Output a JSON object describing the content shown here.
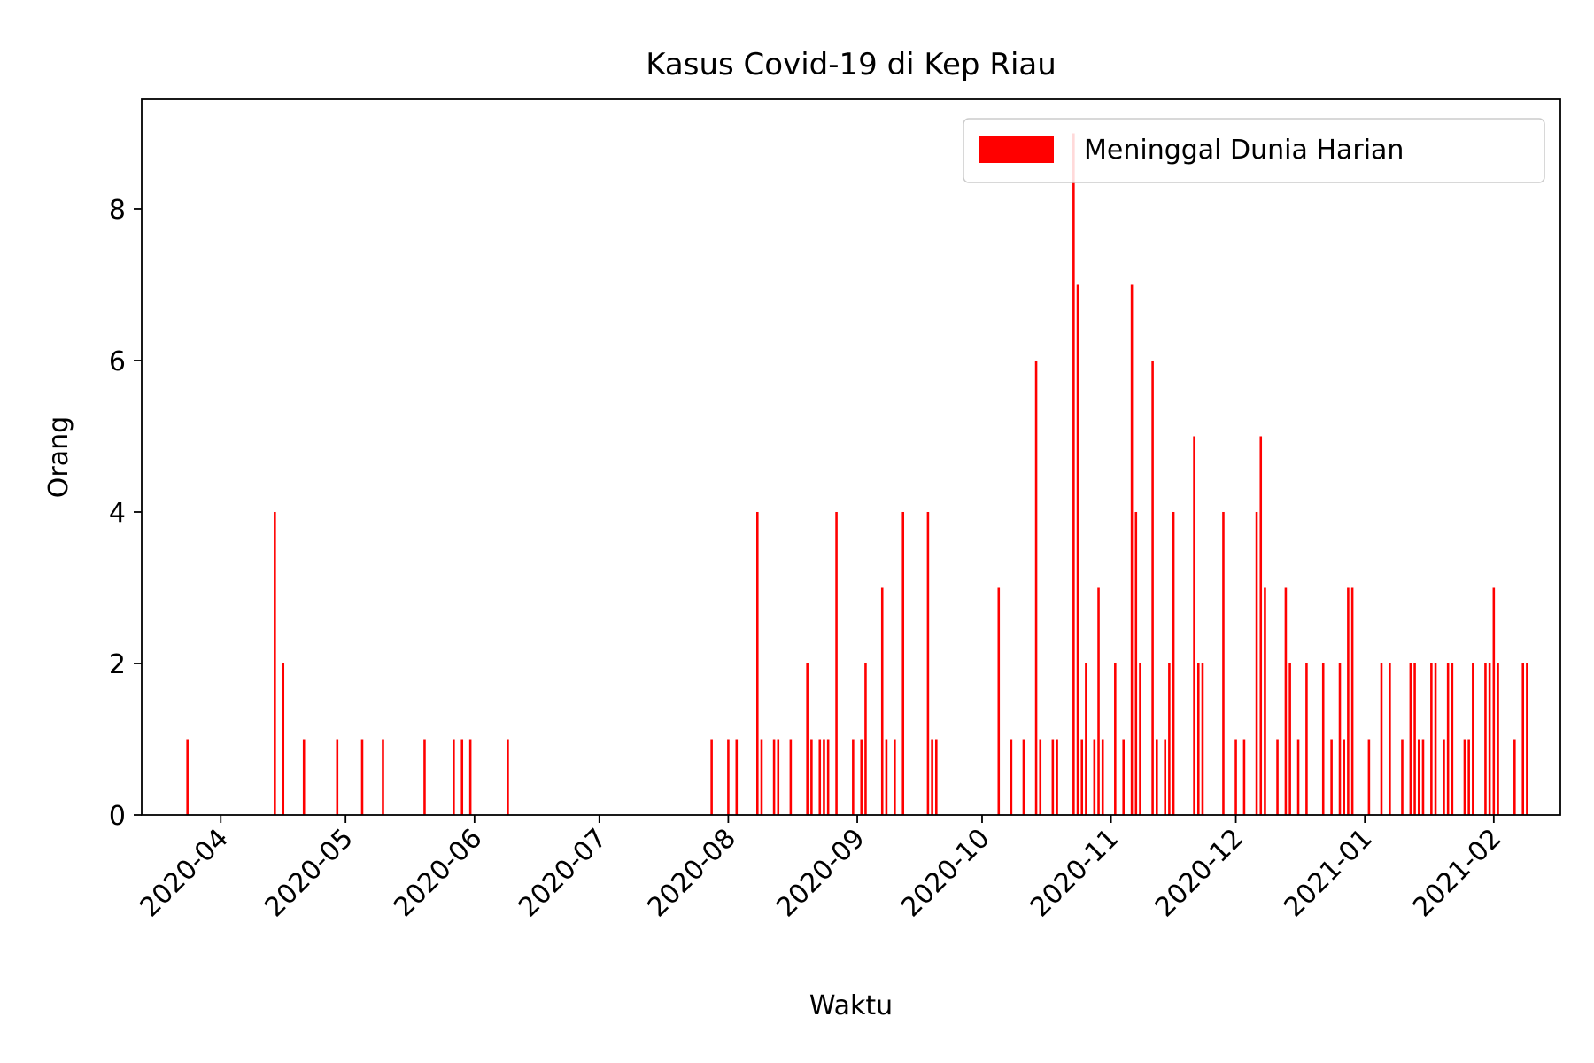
{
  "chart_data": {
    "type": "bar",
    "title": "Kasus Covid-19 di Kep Riau",
    "xlabel": "Waktu",
    "ylabel": "Orang",
    "ylim": [
      0,
      9.45
    ],
    "xlim": [
      "2020-03-13",
      "2021-02-17"
    ],
    "y_ticks": [
      0,
      2,
      4,
      6,
      8
    ],
    "x_ticks": [
      "2020-04",
      "2020-05",
      "2020-06",
      "2020-07",
      "2020-08",
      "2020-09",
      "2020-10",
      "2020-11",
      "2020-12",
      "2021-01",
      "2021-02"
    ],
    "x_tick_dates": [
      "2020-04-01",
      "2020-05-01",
      "2020-06-01",
      "2020-07-01",
      "2020-08-01",
      "2020-09-01",
      "2020-10-01",
      "2020-11-01",
      "2020-12-01",
      "2021-01-01",
      "2021-02-01"
    ],
    "grid": false,
    "legend_position": "top-right",
    "series": [
      {
        "name": "Meninggal Dunia Harian",
        "color": "#ff0000",
        "points": [
          [
            "2020-03-24",
            1
          ],
          [
            "2020-04-14",
            4
          ],
          [
            "2020-04-16",
            2
          ],
          [
            "2020-04-21",
            1
          ],
          [
            "2020-04-29",
            1
          ],
          [
            "2020-05-05",
            1
          ],
          [
            "2020-05-10",
            1
          ],
          [
            "2020-05-20",
            1
          ],
          [
            "2020-05-27",
            1
          ],
          [
            "2020-05-29",
            1
          ],
          [
            "2020-05-31",
            1
          ],
          [
            "2020-06-09",
            1
          ],
          [
            "2020-07-28",
            1
          ],
          [
            "2020-08-01",
            1
          ],
          [
            "2020-08-03",
            1
          ],
          [
            "2020-08-08",
            4
          ],
          [
            "2020-08-09",
            1
          ],
          [
            "2020-08-12",
            1
          ],
          [
            "2020-08-13",
            1
          ],
          [
            "2020-08-16",
            1
          ],
          [
            "2020-08-20",
            2
          ],
          [
            "2020-08-21",
            1
          ],
          [
            "2020-08-23",
            1
          ],
          [
            "2020-08-24",
            1
          ],
          [
            "2020-08-25",
            1
          ],
          [
            "2020-08-27",
            4
          ],
          [
            "2020-08-31",
            1
          ],
          [
            "2020-09-02",
            1
          ],
          [
            "2020-09-03",
            2
          ],
          [
            "2020-09-07",
            3
          ],
          [
            "2020-09-08",
            1
          ],
          [
            "2020-09-10",
            1
          ],
          [
            "2020-09-12",
            4
          ],
          [
            "2020-09-18",
            4
          ],
          [
            "2020-09-19",
            1
          ],
          [
            "2020-09-20",
            1
          ],
          [
            "2020-10-05",
            3
          ],
          [
            "2020-10-08",
            1
          ],
          [
            "2020-10-11",
            1
          ],
          [
            "2020-10-14",
            6
          ],
          [
            "2020-10-15",
            1
          ],
          [
            "2020-10-18",
            1
          ],
          [
            "2020-10-19",
            1
          ],
          [
            "2020-10-23",
            9
          ],
          [
            "2020-10-24",
            7
          ],
          [
            "2020-10-25",
            1
          ],
          [
            "2020-10-26",
            2
          ],
          [
            "2020-10-28",
            1
          ],
          [
            "2020-10-29",
            3
          ],
          [
            "2020-10-30",
            1
          ],
          [
            "2020-11-02",
            2
          ],
          [
            "2020-11-04",
            1
          ],
          [
            "2020-11-06",
            7
          ],
          [
            "2020-11-07",
            4
          ],
          [
            "2020-11-08",
            2
          ],
          [
            "2020-11-11",
            6
          ],
          [
            "2020-11-12",
            1
          ],
          [
            "2020-11-14",
            1
          ],
          [
            "2020-11-15",
            2
          ],
          [
            "2020-11-16",
            4
          ],
          [
            "2020-11-21",
            5
          ],
          [
            "2020-11-22",
            2
          ],
          [
            "2020-11-23",
            2
          ],
          [
            "2020-11-28",
            4
          ],
          [
            "2020-12-01",
            1
          ],
          [
            "2020-12-03",
            1
          ],
          [
            "2020-12-06",
            4
          ],
          [
            "2020-12-07",
            5
          ],
          [
            "2020-12-08",
            3
          ],
          [
            "2020-12-11",
            1
          ],
          [
            "2020-12-13",
            3
          ],
          [
            "2020-12-14",
            2
          ],
          [
            "2020-12-16",
            1
          ],
          [
            "2020-12-18",
            2
          ],
          [
            "2020-12-22",
            2
          ],
          [
            "2020-12-24",
            1
          ],
          [
            "2020-12-26",
            2
          ],
          [
            "2020-12-27",
            1
          ],
          [
            "2020-12-28",
            3
          ],
          [
            "2020-12-29",
            3
          ],
          [
            "2021-01-02",
            1
          ],
          [
            "2021-01-05",
            2
          ],
          [
            "2021-01-07",
            2
          ],
          [
            "2021-01-10",
            1
          ],
          [
            "2021-01-12",
            2
          ],
          [
            "2021-01-13",
            2
          ],
          [
            "2021-01-14",
            1
          ],
          [
            "2021-01-15",
            1
          ],
          [
            "2021-01-17",
            2
          ],
          [
            "2021-01-18",
            2
          ],
          [
            "2021-01-20",
            1
          ],
          [
            "2021-01-21",
            2
          ],
          [
            "2021-01-22",
            2
          ],
          [
            "2021-01-25",
            1
          ],
          [
            "2021-01-26",
            1
          ],
          [
            "2021-01-27",
            2
          ],
          [
            "2021-01-30",
            2
          ],
          [
            "2021-01-31",
            2
          ],
          [
            "2021-02-01",
            3
          ],
          [
            "2021-02-02",
            2
          ],
          [
            "2021-02-06",
            1
          ],
          [
            "2021-02-08",
            2
          ],
          [
            "2021-02-09",
            2
          ]
        ]
      }
    ]
  }
}
